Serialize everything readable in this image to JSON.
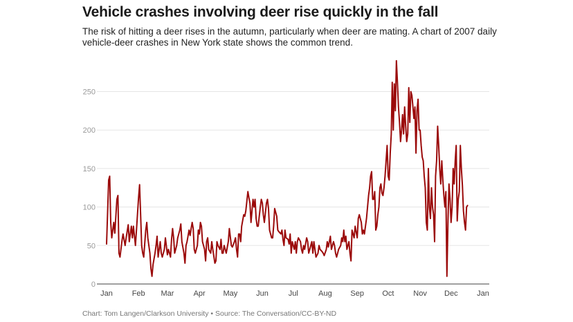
{
  "title": "Vehicle crashes involving deer rise quickly in the fall",
  "subtitle": "The risk of hitting a deer rises in the autumn, particularly when deer are mating. A chart of 2007 daily vehicle-deer crashes in New York state shows the common trend.",
  "source": "Chart: Tom Langen/Clarkson University • Source: The Conversation/CC-BY-ND",
  "colors": {
    "line": "#9b0a0a",
    "grid": "#e5e5e5",
    "axis": "#666666"
  },
  "chart_data": {
    "type": "line",
    "title": "Vehicle crashes involving deer rise quickly in the fall",
    "xlabel": "",
    "ylabel": "",
    "ylim": [
      0,
      250
    ],
    "yticks": [
      0,
      50,
      100,
      150,
      200,
      250
    ],
    "xlim": [
      0,
      365
    ],
    "grid": true,
    "xticks": [
      {
        "label": "Jan",
        "day": 0
      },
      {
        "label": "Feb",
        "day": 31
      },
      {
        "label": "Mar",
        "day": 59
      },
      {
        "label": "Apr",
        "day": 90
      },
      {
        "label": "May",
        "day": 120
      },
      {
        "label": "Jun",
        "day": 151
      },
      {
        "label": "Jul",
        "day": 181
      },
      {
        "label": "Aug",
        "day": 212
      },
      {
        "label": "Sep",
        "day": 243
      },
      {
        "label": "Oct",
        "day": 273
      },
      {
        "label": "Nov",
        "day": 304
      },
      {
        "label": "Dec",
        "day": 334
      },
      {
        "label": "Jan",
        "day": 365
      }
    ],
    "series": [
      {
        "name": "Daily vehicle-deer crashes (2007)",
        "points": [
          [
            0,
            52
          ],
          [
            2,
            135
          ],
          [
            3,
            140
          ],
          [
            4,
            80
          ],
          [
            5,
            60
          ],
          [
            7,
            80
          ],
          [
            8,
            66
          ],
          [
            10,
            110
          ],
          [
            11,
            115
          ],
          [
            12,
            40
          ],
          [
            13,
            35
          ],
          [
            15,
            57
          ],
          [
            16,
            65
          ],
          [
            18,
            50
          ],
          [
            19,
            60
          ],
          [
            21,
            77
          ],
          [
            22,
            55
          ],
          [
            24,
            75
          ],
          [
            25,
            60
          ],
          [
            26,
            75
          ],
          [
            28,
            50
          ],
          [
            29,
            70
          ],
          [
            31,
            112
          ],
          [
            32,
            129
          ],
          [
            33,
            90
          ],
          [
            34,
            50
          ],
          [
            35,
            40
          ],
          [
            36,
            35
          ],
          [
            38,
            70
          ],
          [
            39,
            80
          ],
          [
            40,
            60
          ],
          [
            42,
            40
          ],
          [
            43,
            20
          ],
          [
            44,
            10
          ],
          [
            45,
            25
          ],
          [
            47,
            40
          ],
          [
            48,
            50
          ],
          [
            49,
            62
          ],
          [
            50,
            35
          ],
          [
            52,
            55
          ],
          [
            53,
            40
          ],
          [
            54,
            35
          ],
          [
            56,
            45
          ],
          [
            57,
            60
          ],
          [
            59,
            38
          ],
          [
            60,
            45
          ],
          [
            62,
            35
          ],
          [
            63,
            58
          ],
          [
            64,
            72
          ],
          [
            65,
            60
          ],
          [
            66,
            40
          ],
          [
            68,
            50
          ],
          [
            69,
            60
          ],
          [
            71,
            70
          ],
          [
            72,
            78
          ],
          [
            73,
            55
          ],
          [
            75,
            40
          ],
          [
            76,
            27
          ],
          [
            77,
            50
          ],
          [
            78,
            55
          ],
          [
            80,
            70
          ],
          [
            81,
            63
          ],
          [
            82,
            72
          ],
          [
            83,
            80
          ],
          [
            84,
            72
          ],
          [
            85,
            45
          ],
          [
            86,
            40
          ],
          [
            88,
            50
          ],
          [
            89,
            70
          ],
          [
            90,
            65
          ],
          [
            91,
            80
          ],
          [
            92,
            75
          ],
          [
            93,
            55
          ],
          [
            95,
            45
          ],
          [
            96,
            30
          ],
          [
            97,
            55
          ],
          [
            98,
            60
          ],
          [
            99,
            45
          ],
          [
            101,
            40
          ],
          [
            102,
            55
          ],
          [
            103,
            45
          ],
          [
            105,
            27
          ],
          [
            106,
            30
          ],
          [
            107,
            55
          ],
          [
            108,
            50
          ],
          [
            110,
            45
          ],
          [
            111,
            58
          ],
          [
            112,
            40
          ],
          [
            113,
            40
          ],
          [
            114,
            50
          ],
          [
            115,
            45
          ],
          [
            116,
            40
          ],
          [
            118,
            55
          ],
          [
            119,
            72
          ],
          [
            121,
            50
          ],
          [
            122,
            48
          ],
          [
            124,
            55
          ],
          [
            125,
            60
          ],
          [
            126,
            45
          ],
          [
            127,
            35
          ],
          [
            128,
            65
          ],
          [
            129,
            65
          ],
          [
            130,
            55
          ],
          [
            131,
            75
          ],
          [
            133,
            90
          ],
          [
            134,
            88
          ],
          [
            135,
            95
          ],
          [
            137,
            120
          ],
          [
            138,
            112
          ],
          [
            139,
            105
          ],
          [
            140,
            80
          ],
          [
            142,
            110
          ],
          [
            143,
            100
          ],
          [
            144,
            110
          ],
          [
            145,
            85
          ],
          [
            146,
            75
          ],
          [
            147,
            75
          ],
          [
            149,
            100
          ],
          [
            150,
            110
          ],
          [
            151,
            105
          ],
          [
            152,
            90
          ],
          [
            153,
            80
          ],
          [
            155,
            105
          ],
          [
            156,
            110
          ],
          [
            157,
            98
          ],
          [
            158,
            70
          ],
          [
            160,
            60
          ],
          [
            161,
            60
          ],
          [
            162,
            75
          ],
          [
            163,
            98
          ],
          [
            165,
            88
          ],
          [
            166,
            70
          ],
          [
            167,
            68
          ],
          [
            169,
            65
          ],
          [
            170,
            70
          ],
          [
            171,
            58
          ],
          [
            172,
            50
          ],
          [
            173,
            70
          ],
          [
            174,
            60
          ],
          [
            176,
            58
          ],
          [
            177,
            52
          ],
          [
            178,
            65
          ],
          [
            179,
            40
          ],
          [
            180,
            55
          ],
          [
            182,
            45
          ],
          [
            183,
            55
          ],
          [
            184,
            40
          ],
          [
            185,
            55
          ],
          [
            186,
            60
          ],
          [
            188,
            55
          ],
          [
            189,
            45
          ],
          [
            190,
            40
          ],
          [
            191,
            50
          ],
          [
            192,
            45
          ],
          [
            194,
            60
          ],
          [
            195,
            55
          ],
          [
            196,
            40
          ],
          [
            197,
            45
          ],
          [
            199,
            55
          ],
          [
            200,
            40
          ],
          [
            201,
            55
          ],
          [
            202,
            45
          ],
          [
            203,
            35
          ],
          [
            205,
            40
          ],
          [
            206,
            50
          ],
          [
            207,
            45
          ],
          [
            209,
            42
          ],
          [
            210,
            40
          ],
          [
            211,
            37
          ],
          [
            213,
            45
          ],
          [
            214,
            55
          ],
          [
            215,
            48
          ],
          [
            217,
            62
          ],
          [
            218,
            45
          ],
          [
            220,
            55
          ],
          [
            221,
            50
          ],
          [
            222,
            40
          ],
          [
            223,
            35
          ],
          [
            224,
            40
          ],
          [
            225,
            45
          ],
          [
            227,
            50
          ],
          [
            228,
            60
          ],
          [
            229,
            55
          ],
          [
            230,
            70
          ],
          [
            231,
            55
          ],
          [
            232,
            62
          ],
          [
            233,
            45
          ],
          [
            235,
            55
          ],
          [
            236,
            40
          ],
          [
            237,
            30
          ],
          [
            238,
            70
          ],
          [
            240,
            60
          ],
          [
            241,
            75
          ],
          [
            243,
            60
          ],
          [
            244,
            85
          ],
          [
            245,
            90
          ],
          [
            247,
            80
          ],
          [
            248,
            65
          ],
          [
            249,
            70
          ],
          [
            250,
            65
          ],
          [
            251,
            75
          ],
          [
            252,
            85
          ],
          [
            253,
            100
          ],
          [
            254,
            115
          ],
          [
            255,
            125
          ],
          [
            256,
            140
          ],
          [
            257,
            146
          ],
          [
            258,
            110
          ],
          [
            259,
            110
          ],
          [
            260,
            120
          ],
          [
            261,
            70
          ],
          [
            262,
            75
          ],
          [
            263,
            90
          ],
          [
            264,
            100
          ],
          [
            265,
            125
          ],
          [
            266,
            130
          ],
          [
            267,
            118
          ],
          [
            268,
            115
          ],
          [
            269,
            125
          ],
          [
            270,
            140
          ],
          [
            271,
            160
          ],
          [
            272,
            180
          ],
          [
            273,
            140
          ],
          [
            274,
            135
          ],
          [
            275,
            170
          ],
          [
            276,
            195
          ],
          [
            277,
            262
          ],
          [
            278,
            200
          ],
          [
            279,
            260
          ],
          [
            280,
            225
          ],
          [
            281,
            290
          ],
          [
            282,
            262
          ],
          [
            283,
            230
          ],
          [
            284,
            210
          ],
          [
            285,
            185
          ],
          [
            286,
            200
          ],
          [
            287,
            220
          ],
          [
            288,
            195
          ],
          [
            289,
            230
          ],
          [
            290,
            205
          ],
          [
            291,
            185
          ],
          [
            292,
            195
          ],
          [
            293,
            255
          ],
          [
            294,
            210
          ],
          [
            295,
            250
          ],
          [
            296,
            245
          ],
          [
            297,
            230
          ],
          [
            298,
            215
          ],
          [
            299,
            230
          ],
          [
            300,
            170
          ],
          [
            301,
            225
          ],
          [
            302,
            240
          ],
          [
            303,
            200
          ],
          [
            304,
            200
          ],
          [
            305,
            180
          ],
          [
            306,
            165
          ],
          [
            307,
            160
          ],
          [
            308,
            140
          ],
          [
            309,
            125
          ],
          [
            310,
            80
          ],
          [
            311,
            70
          ],
          [
            312,
            150
          ],
          [
            313,
            100
          ],
          [
            314,
            85
          ],
          [
            315,
            125
          ],
          [
            316,
            100
          ],
          [
            317,
            90
          ],
          [
            318,
            55
          ],
          [
            319,
            140
          ],
          [
            320,
            160
          ],
          [
            321,
            205
          ],
          [
            322,
            180
          ],
          [
            323,
            150
          ],
          [
            324,
            130
          ],
          [
            325,
            160
          ],
          [
            326,
            135
          ],
          [
            327,
            115
          ],
          [
            328,
            100
          ],
          [
            329,
            120
          ],
          [
            330,
            10
          ],
          [
            331,
            80
          ],
          [
            332,
            130
          ],
          [
            333,
            110
          ],
          [
            334,
            80
          ],
          [
            335,
            100
          ],
          [
            336,
            150
          ],
          [
            337,
            130
          ],
          [
            338,
            160
          ],
          [
            339,
            180
          ],
          [
            340,
            82
          ],
          [
            341,
            110
          ],
          [
            342,
            120
          ],
          [
            343,
            180
          ],
          [
            344,
            150
          ],
          [
            345,
            128
          ],
          [
            346,
            95
          ],
          [
            347,
            80
          ],
          [
            348,
            70
          ],
          [
            349,
            100
          ],
          [
            350,
            102
          ]
        ]
      }
    ]
  }
}
